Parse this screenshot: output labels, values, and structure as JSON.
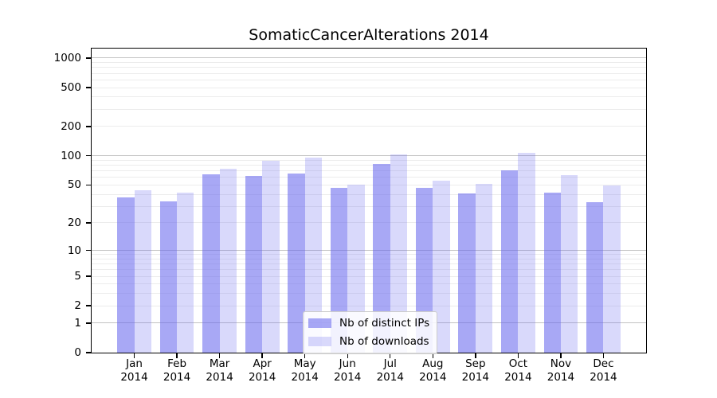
{
  "chart_data": {
    "type": "bar",
    "title": "SomaticCancerAlterations 2014",
    "categories": [
      "Jan",
      "Feb",
      "Mar",
      "Apr",
      "May",
      "Jun",
      "Jul",
      "Aug",
      "Sep",
      "Oct",
      "Nov",
      "Dec"
    ],
    "x_tick_second_line": "2014",
    "series": [
      {
        "name": "Nb of distinct IPs",
        "values": [
          37,
          34,
          64,
          62,
          66,
          47,
          82,
          47,
          41,
          71,
          42,
          33
        ],
        "color": "rgba(102,102,238,0.57)"
      },
      {
        "name": "Nb of downloads",
        "values": [
          44,
          42,
          74,
          89,
          96,
          50,
          104,
          55,
          51,
          108,
          63,
          49
        ],
        "color": "rgba(102,102,238,0.25)"
      }
    ],
    "xlabel": "",
    "ylabel": "",
    "yticks": [
      0,
      1,
      2,
      5,
      10,
      20,
      50,
      100,
      200,
      500,
      1000
    ],
    "yscale": "log1p",
    "ylim": [
      0,
      1250
    ],
    "grid": "both",
    "legend_position": "lower center",
    "colors": {
      "grid_major": "#c3c3c3",
      "grid_minor": "#ececec",
      "axis": "#000000",
      "bar_base": "#6666ee"
    }
  }
}
